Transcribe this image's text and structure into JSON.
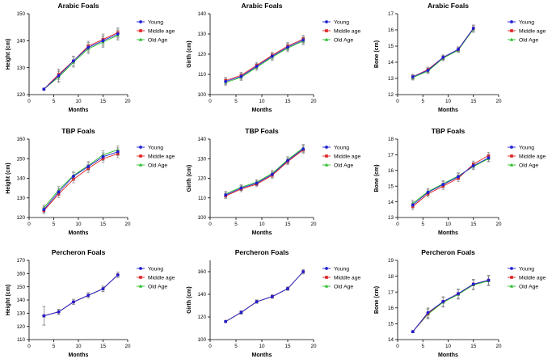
{
  "figure": {
    "series_colors": {
      "Young": "#1f1fd6",
      "Middle age": "#e02020",
      "Old Age": "#22bb22"
    },
    "error_bar_color": "#7a7a7a"
  },
  "chart_data": [
    {
      "type": "line",
      "title": "Arabic Foals",
      "xlabel": "Months",
      "ylabel": "Height (cm)",
      "xlim": [
        0,
        20
      ],
      "ylim": [
        120,
        150
      ],
      "xticks": [
        0,
        5,
        10,
        15,
        20
      ],
      "yticks": [
        120,
        130,
        140,
        150
      ],
      "legend": "right",
      "series": [
        {
          "name": "Young",
          "x": [
            3,
            6,
            9,
            12,
            15,
            18
          ],
          "values": [
            122,
            127,
            132.5,
            137.5,
            140,
            142.5
          ],
          "errors": [
            0.3,
            2,
            1.8,
            1.8,
            2,
            1.8
          ]
        },
        {
          "name": "Middle age",
          "x": [
            3,
            6,
            9,
            12,
            15,
            18
          ],
          "values": [
            122,
            127.5,
            132.5,
            138,
            140.5,
            143
          ],
          "errors": [
            0.3,
            2,
            1.8,
            1.8,
            2,
            1.8
          ]
        },
        {
          "name": "Old Age",
          "x": [
            3,
            6,
            9,
            12,
            15,
            18
          ],
          "values": [
            122,
            126.5,
            132,
            137,
            139.5,
            142
          ],
          "errors": [
            0.3,
            2,
            1.8,
            1.8,
            2,
            1.8
          ]
        }
      ]
    },
    {
      "type": "line",
      "title": "Arabic Foals",
      "xlabel": "Months",
      "ylabel": "Girth (cm)",
      "xlim": [
        0,
        20
      ],
      "ylim": [
        100,
        140
      ],
      "xticks": [
        0,
        5,
        10,
        15,
        20
      ],
      "yticks": [
        100,
        110,
        120,
        130,
        140
      ],
      "legend": "right",
      "series": [
        {
          "name": "Young",
          "x": [
            3,
            6,
            9,
            12,
            15,
            18
          ],
          "values": [
            106.5,
            109,
            114,
            119,
            123.5,
            127
          ],
          "errors": [
            1.5,
            1.5,
            1.5,
            1.5,
            1.8,
            1.8
          ]
        },
        {
          "name": "Middle age",
          "x": [
            3,
            6,
            9,
            12,
            15,
            18
          ],
          "values": [
            107,
            109.5,
            114.5,
            119.5,
            124,
            127.5
          ],
          "errors": [
            1.5,
            1.5,
            1.5,
            1.5,
            1.8,
            1.8
          ]
        },
        {
          "name": "Old Age",
          "x": [
            3,
            6,
            9,
            12,
            15,
            18
          ],
          "values": [
            106,
            108.5,
            113.5,
            118.5,
            123,
            126.5
          ],
          "errors": [
            1.5,
            1.5,
            1.5,
            1.5,
            1.8,
            1.8
          ]
        }
      ]
    },
    {
      "type": "line",
      "title": "Arabic Foals",
      "xlabel": "Months",
      "ylabel": "Bone (cm)",
      "xlim": [
        0,
        20
      ],
      "ylim": [
        12,
        17
      ],
      "xticks": [
        0,
        5,
        10,
        15,
        20
      ],
      "yticks": [
        12,
        13,
        14,
        15,
        16,
        17
      ],
      "legend": "right",
      "series": [
        {
          "name": "Young",
          "x": [
            3,
            6,
            9,
            12,
            15
          ],
          "values": [
            13.1,
            13.5,
            14.3,
            14.8,
            16.1
          ],
          "errors": [
            0.15,
            0.15,
            0.15,
            0.15,
            0.2
          ]
        },
        {
          "name": "Middle age",
          "x": [
            3,
            6,
            9,
            12,
            15
          ],
          "values": [
            13.1,
            13.55,
            14.3,
            14.8,
            16.1
          ],
          "errors": [
            0.15,
            0.15,
            0.15,
            0.15,
            0.2
          ]
        },
        {
          "name": "Old Age",
          "x": [
            3,
            6,
            9,
            12,
            15
          ],
          "values": [
            13.05,
            13.45,
            14.25,
            14.75,
            16.05
          ],
          "errors": [
            0.15,
            0.15,
            0.15,
            0.15,
            0.2
          ]
        }
      ]
    },
    {
      "type": "line",
      "title": "TBP Foals",
      "xlabel": "Months",
      "ylabel": "Height (cm)",
      "xlim": [
        0,
        20
      ],
      "ylim": [
        120,
        160
      ],
      "xticks": [
        0,
        5,
        10,
        15,
        20
      ],
      "yticks": [
        120,
        130,
        140,
        150,
        160
      ],
      "legend": "right",
      "series": [
        {
          "name": "Young",
          "x": [
            3,
            6,
            9,
            12,
            15,
            18
          ],
          "values": [
            124,
            133,
            141,
            146,
            151,
            153.5
          ],
          "errors": [
            1.5,
            1.8,
            1.8,
            2,
            2,
            2
          ]
        },
        {
          "name": "Middle age",
          "x": [
            3,
            6,
            9,
            12,
            15,
            18
          ],
          "values": [
            123.5,
            132,
            139.5,
            145,
            150,
            152.5
          ],
          "errors": [
            1.5,
            1.8,
            1.8,
            2,
            2,
            2
          ]
        },
        {
          "name": "Old Age",
          "x": [
            3,
            6,
            9,
            12,
            15,
            18
          ],
          "values": [
            125,
            134,
            141.5,
            146.5,
            152,
            154.5
          ],
          "errors": [
            1.5,
            1.8,
            1.8,
            2,
            2,
            2
          ]
        }
      ]
    },
    {
      "type": "line",
      "title": "TBP Foals",
      "xlabel": "Months",
      "ylabel": "Girth (cm)",
      "xlim": [
        0,
        20
      ],
      "ylim": [
        100,
        140
      ],
      "xticks": [
        0,
        5,
        10,
        15,
        20
      ],
      "yticks": [
        100,
        110,
        120,
        130,
        140
      ],
      "legend": "right",
      "series": [
        {
          "name": "Young",
          "x": [
            3,
            6,
            9,
            12,
            15,
            18
          ],
          "values": [
            111.5,
            115,
            117.5,
            122,
            129,
            135
          ],
          "errors": [
            1.3,
            1.3,
            1.3,
            1.5,
            1.5,
            1.8
          ]
        },
        {
          "name": "Middle age",
          "x": [
            3,
            6,
            9,
            12,
            15,
            18
          ],
          "values": [
            111,
            114.5,
            117,
            121.5,
            128.5,
            134.5
          ],
          "errors": [
            1.3,
            1.3,
            1.3,
            1.5,
            1.5,
            1.8
          ]
        },
        {
          "name": "Old Age",
          "x": [
            3,
            6,
            9,
            12,
            15,
            18
          ],
          "values": [
            112,
            115.5,
            118,
            122.5,
            129.5,
            135.5
          ],
          "errors": [
            1.3,
            1.3,
            1.3,
            1.5,
            1.5,
            1.8
          ]
        }
      ]
    },
    {
      "type": "line",
      "title": "TBP Foals",
      "xlabel": "Months",
      "ylabel": "Bone (cm)",
      "xlim": [
        0,
        20
      ],
      "ylim": [
        13,
        18
      ],
      "xticks": [
        0,
        5,
        10,
        15,
        20
      ],
      "yticks": [
        13,
        14,
        15,
        16,
        17,
        18
      ],
      "legend": "right",
      "series": [
        {
          "name": "Young",
          "x": [
            3,
            6,
            9,
            12,
            15,
            18
          ],
          "values": [
            13.8,
            14.6,
            15.1,
            15.6,
            16.3,
            16.8
          ],
          "errors": [
            0.2,
            0.2,
            0.2,
            0.2,
            0.2,
            0.2
          ]
        },
        {
          "name": "Middle age",
          "x": [
            3,
            6,
            9,
            12,
            15,
            18
          ],
          "values": [
            13.7,
            14.5,
            15.0,
            15.5,
            16.4,
            16.95
          ],
          "errors": [
            0.2,
            0.2,
            0.2,
            0.2,
            0.2,
            0.2
          ]
        },
        {
          "name": "Old Age",
          "x": [
            3,
            6,
            9,
            12,
            15,
            18
          ],
          "values": [
            13.9,
            14.65,
            15.15,
            15.65,
            16.25,
            16.75
          ],
          "errors": [
            0.2,
            0.2,
            0.2,
            0.2,
            0.2,
            0.2
          ]
        }
      ]
    },
    {
      "type": "line",
      "title": "Percheron Foals",
      "xlabel": "Months",
      "ylabel": "Height (cm)",
      "xlim": [
        0,
        20
      ],
      "ylim": [
        110,
        170
      ],
      "xticks": [
        0,
        5,
        10,
        15,
        20
      ],
      "yticks": [
        110,
        120,
        130,
        140,
        150,
        160,
        170
      ],
      "legend": "right",
      "series": [
        {
          "name": "Young",
          "x": [
            3,
            6,
            9,
            12,
            15,
            18
          ],
          "values": [
            128,
            131,
            138.5,
            143.5,
            148.5,
            159
          ],
          "errors": [
            7,
            2,
            2,
            2,
            2,
            2
          ]
        },
        {
          "name": "Middle age",
          "x": [
            3,
            6,
            9,
            12,
            15,
            18
          ],
          "values": [
            128,
            131,
            138.5,
            143.5,
            148.5,
            159
          ],
          "errors": [
            7,
            2,
            2,
            2,
            2,
            2
          ]
        },
        {
          "name": "Old Age",
          "x": [
            3,
            6,
            9,
            12,
            15,
            18
          ],
          "values": [
            128,
            131,
            138.5,
            143.5,
            148.5,
            159
          ],
          "errors": [
            7,
            2,
            2,
            2,
            2,
            2
          ]
        }
      ]
    },
    {
      "type": "line",
      "title": "Percheron Foals",
      "xlabel": "Months",
      "ylabel": "Girth (cm)",
      "xlim": [
        0,
        20
      ],
      "ylim": [
        100,
        170
      ],
      "xticks": [
        0,
        5,
        10,
        15,
        20
      ],
      "yticks": [
        100,
        120,
        140,
        160
      ],
      "legend": "right",
      "series": [
        {
          "name": "Young",
          "x": [
            3,
            6,
            9,
            12,
            15,
            18
          ],
          "values": [
            116,
            124,
            133.5,
            138,
            145,
            160
          ],
          "errors": [
            0.8,
            1.5,
            1.5,
            1.5,
            1.5,
            2
          ]
        },
        {
          "name": "Middle age",
          "x": [
            3,
            6,
            9,
            12,
            15,
            18
          ],
          "values": [
            116,
            124,
            133.5,
            138,
            145,
            160
          ],
          "errors": [
            0.8,
            1.5,
            1.5,
            1.5,
            1.5,
            2
          ]
        },
        {
          "name": "Old Age",
          "x": [
            3,
            6,
            9,
            12,
            15,
            18
          ],
          "values": [
            116,
            124,
            133.5,
            138,
            145,
            160
          ],
          "errors": [
            0.8,
            1.5,
            1.5,
            1.5,
            1.5,
            2
          ]
        }
      ]
    },
    {
      "type": "line",
      "title": "Percheron Foals",
      "xlabel": "Months",
      "ylabel": "Bone (cm)",
      "xlim": [
        0,
        20
      ],
      "ylim": [
        14,
        19
      ],
      "xticks": [
        0,
        5,
        10,
        15,
        20
      ],
      "yticks": [
        14,
        15,
        16,
        17,
        18,
        19
      ],
      "legend": "right",
      "series": [
        {
          "name": "Young",
          "x": [
            3,
            6,
            9,
            12,
            15,
            18
          ],
          "values": [
            14.5,
            15.7,
            16.4,
            16.9,
            17.5,
            17.75
          ],
          "errors": [
            0.05,
            0.3,
            0.3,
            0.3,
            0.3,
            0.3
          ]
        },
        {
          "name": "Middle age",
          "x": [
            3,
            6,
            9,
            12,
            15,
            18
          ],
          "values": [
            14.5,
            15.65,
            16.4,
            16.9,
            17.5,
            17.75
          ],
          "errors": [
            0.05,
            0.3,
            0.3,
            0.3,
            0.3,
            0.3
          ]
        },
        {
          "name": "Old Age",
          "x": [
            3,
            6,
            9,
            12,
            15,
            18
          ],
          "values": [
            14.5,
            15.6,
            16.35,
            16.85,
            17.45,
            17.7
          ],
          "errors": [
            0.05,
            0.3,
            0.3,
            0.3,
            0.3,
            0.3
          ]
        }
      ]
    }
  ]
}
